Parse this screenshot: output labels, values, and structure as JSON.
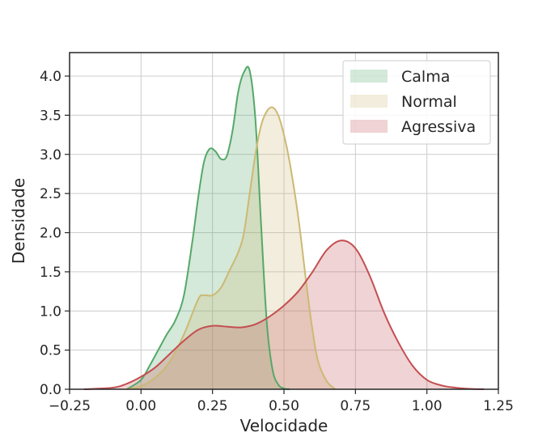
{
  "chart_data": {
    "type": "area",
    "title": "",
    "xlabel": "Velocidade",
    "ylabel": "Densidade",
    "xlim": [
      -0.25,
      1.25
    ],
    "ylim": [
      0,
      4.3
    ],
    "xticks": [
      -0.25,
      0.0,
      0.25,
      0.5,
      0.75,
      1.0,
      1.25
    ],
    "xtick_labels": [
      "−0.25",
      "0.00",
      "0.25",
      "0.50",
      "0.75",
      "1.00",
      "1.25"
    ],
    "yticks": [
      0.0,
      0.5,
      1.0,
      1.5,
      2.0,
      2.5,
      3.0,
      3.5,
      4.0
    ],
    "ytick_labels": [
      "0.0",
      "0.5",
      "1.0",
      "1.5",
      "2.0",
      "2.5",
      "3.0",
      "3.5",
      "4.0"
    ],
    "grid": true,
    "legend_position": "top-right",
    "series": [
      {
        "name": "Calma",
        "line_color": "#55a868",
        "fill_color": "#55a868",
        "x": [
          -0.05,
          0.0,
          0.03,
          0.06,
          0.09,
          0.12,
          0.15,
          0.18,
          0.2,
          0.22,
          0.24,
          0.26,
          0.28,
          0.3,
          0.32,
          0.34,
          0.36,
          0.38,
          0.4,
          0.42,
          0.44,
          0.46,
          0.48,
          0.5,
          0.52
        ],
        "y": [
          0.0,
          0.12,
          0.3,
          0.5,
          0.7,
          0.88,
          1.2,
          1.9,
          2.45,
          2.9,
          3.07,
          3.04,
          2.94,
          2.98,
          3.3,
          3.8,
          4.05,
          4.07,
          3.45,
          2.1,
          0.85,
          0.25,
          0.06,
          0.01,
          0.0
        ]
      },
      {
        "name": "Normal",
        "line_color": "#ccb974",
        "fill_color": "#ccb974",
        "x": [
          -0.05,
          0.0,
          0.05,
          0.1,
          0.15,
          0.2,
          0.22,
          0.25,
          0.28,
          0.31,
          0.34,
          0.36,
          0.38,
          0.4,
          0.42,
          0.44,
          0.46,
          0.48,
          0.5,
          0.52,
          0.55,
          0.58,
          0.6,
          0.62,
          0.65,
          0.68
        ],
        "y": [
          0.0,
          0.04,
          0.15,
          0.35,
          0.7,
          1.15,
          1.2,
          1.2,
          1.3,
          1.52,
          1.75,
          2.0,
          2.5,
          3.0,
          3.37,
          3.55,
          3.6,
          3.5,
          3.25,
          2.9,
          2.2,
          1.3,
          0.75,
          0.35,
          0.1,
          0.0
        ]
      },
      {
        "name": "Agressiva",
        "line_color": "#c44e52",
        "fill_color": "#c44e52",
        "x": [
          -0.2,
          -0.1,
          -0.05,
          0.0,
          0.05,
          0.1,
          0.15,
          0.2,
          0.25,
          0.3,
          0.35,
          0.4,
          0.45,
          0.5,
          0.55,
          0.6,
          0.65,
          0.7,
          0.75,
          0.8,
          0.85,
          0.9,
          0.95,
          1.0,
          1.05,
          1.1,
          1.15,
          1.2
        ],
        "y": [
          0.0,
          0.02,
          0.07,
          0.16,
          0.28,
          0.45,
          0.62,
          0.76,
          0.81,
          0.8,
          0.79,
          0.83,
          0.93,
          1.07,
          1.25,
          1.5,
          1.78,
          1.9,
          1.8,
          1.45,
          0.98,
          0.6,
          0.3,
          0.12,
          0.05,
          0.02,
          0.005,
          0.0
        ]
      }
    ]
  }
}
